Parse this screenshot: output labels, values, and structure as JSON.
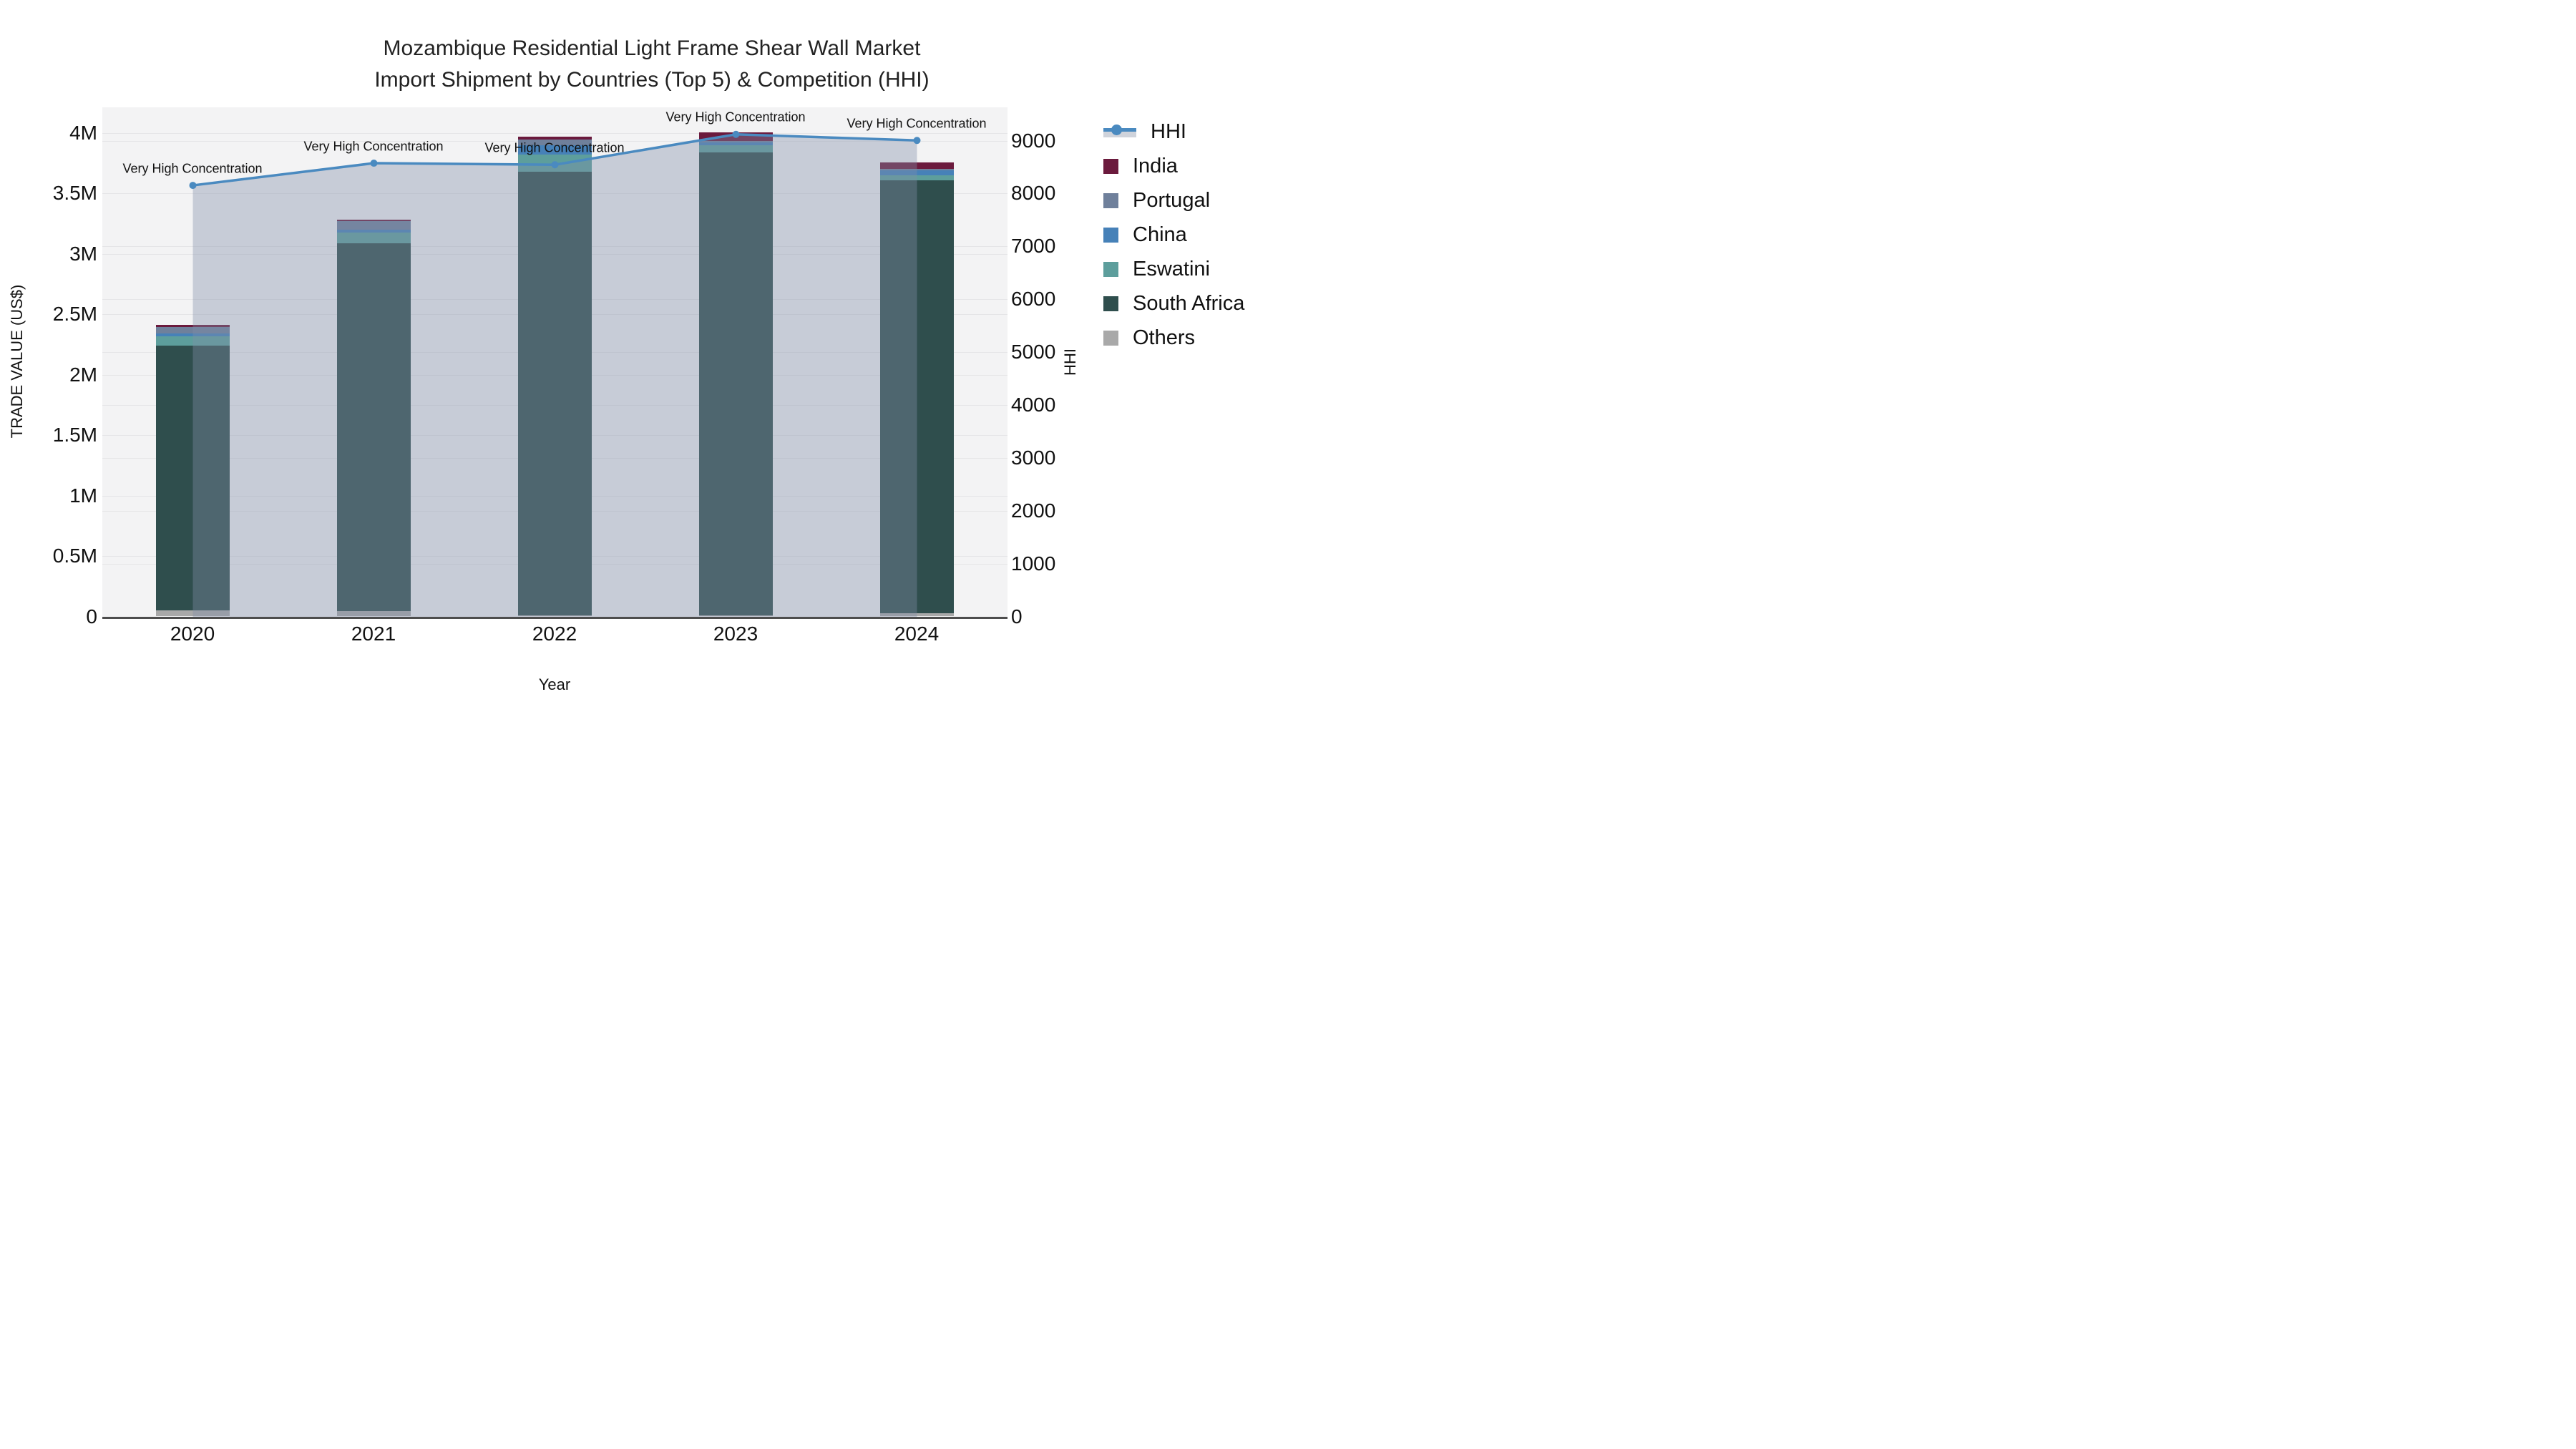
{
  "chart_data": {
    "type": "combo-stacked-bar-line",
    "title_line1": "Mozambique Residential Light Frame Shear Wall Market",
    "title_line2": "Import Shipment by Countries (Top 5) & Competition (HHI)",
    "categories": [
      "2020",
      "2021",
      "2022",
      "2023",
      "2024"
    ],
    "bar_series": [
      {
        "name": "Others",
        "color": "#A9A9A9",
        "values": [
          53000,
          45000,
          10000,
          9000,
          29000
        ]
      },
      {
        "name": "South Africa",
        "color": "#2F4E4D",
        "values": [
          2187000,
          3042000,
          3667000,
          3831000,
          3576000
        ]
      },
      {
        "name": "Eswatini",
        "color": "#5D9E9C",
        "values": [
          74000,
          88000,
          143000,
          59000,
          45000
        ]
      },
      {
        "name": "China",
        "color": "#4681B8",
        "values": [
          25000,
          23000,
          77000,
          23000,
          38000
        ]
      },
      {
        "name": "Portugal",
        "color": "#6F809B",
        "values": [
          54000,
          72000,
          46000,
          12000,
          14000
        ]
      },
      {
        "name": "India",
        "color": "#6B1A3D",
        "values": [
          17000,
          14000,
          27000,
          69000,
          55000
        ]
      }
    ],
    "line_series": {
      "name": "HHI",
      "color": "#4A8AC0",
      "area_fill": "rgba(129,143,169,0.38)",
      "values": [
        8160,
        8580,
        8550,
        9125,
        9010
      ]
    },
    "annotations": [
      "Very High Concentration",
      "Very High Concentration",
      "Very High Concentration",
      "Very High Concentration",
      "Very High Concentration"
    ],
    "axes": {
      "left": {
        "title": "TRADE VALUE (US$)",
        "ticks": [
          {
            "label": "0",
            "value": 0
          },
          {
            "label": "0.5M",
            "value": 500000
          },
          {
            "label": "1M",
            "value": 1000000
          },
          {
            "label": "1.5M",
            "value": 1500000
          },
          {
            "label": "2M",
            "value": 2000000
          },
          {
            "label": "2.5M",
            "value": 2500000
          },
          {
            "label": "3M",
            "value": 3000000
          },
          {
            "label": "3.5M",
            "value": 3500000
          },
          {
            "label": "4M",
            "value": 4000000
          }
        ],
        "range": [
          0,
          4213000
        ]
      },
      "right": {
        "title": "HHI",
        "ticks": [
          {
            "label": "0",
            "value": 0
          },
          {
            "label": "1000",
            "value": 1000
          },
          {
            "label": "2000",
            "value": 2000
          },
          {
            "label": "3000",
            "value": 3000
          },
          {
            "label": "4000",
            "value": 4000
          },
          {
            "label": "5000",
            "value": 5000
          },
          {
            "label": "6000",
            "value": 6000
          },
          {
            "label": "7000",
            "value": 7000
          },
          {
            "label": "8000",
            "value": 8000
          },
          {
            "label": "9000",
            "value": 9000
          }
        ],
        "range": [
          0,
          9636
        ]
      },
      "x": {
        "title": "Year"
      }
    },
    "legend": [
      {
        "label": "HHI",
        "type": "line",
        "color": "#4A8AC0"
      },
      {
        "label": "India",
        "type": "patch",
        "color": "#6B1A3D"
      },
      {
        "label": "Portugal",
        "type": "patch",
        "color": "#6F809B"
      },
      {
        "label": "China",
        "type": "patch",
        "color": "#4681B8"
      },
      {
        "label": "Eswatini",
        "type": "patch",
        "color": "#5D9E9C"
      },
      {
        "label": "South Africa",
        "type": "patch",
        "color": "#2F4E4D"
      },
      {
        "label": "Others",
        "type": "patch",
        "color": "#A9A9A9"
      }
    ],
    "layout_hints": {
      "plot_background": "#F3F3F4",
      "grid_color": "#E5E5E7",
      "axis_line_color": "#4D4D4D",
      "legend_position": "right",
      "grid": "on"
    }
  }
}
